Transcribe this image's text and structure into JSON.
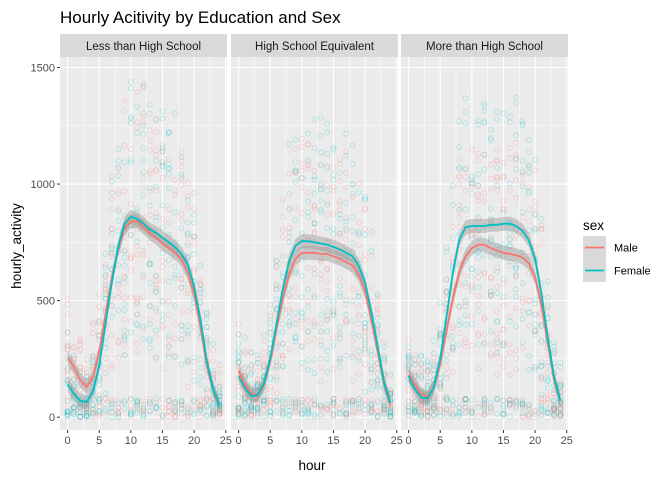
{
  "chart_data": {
    "type": "scatter",
    "title": "Hourly Acitivity by Education and Sex",
    "xlabel": "hour",
    "ylabel": "hourly_activity",
    "xlim": [
      -1.2,
      25.2
    ],
    "ylim": [
      -55,
      1545
    ],
    "x_ticks": [
      0,
      5,
      10,
      15,
      20,
      25
    ],
    "y_ticks": [
      0,
      500,
      1000,
      1500
    ],
    "x_tick_labels": [
      "0",
      "5",
      "10",
      "15",
      "20",
      "25"
    ],
    "y_tick_labels": [
      "0",
      "500",
      "1000",
      "1500"
    ],
    "panel_background": "#ebebeb",
    "strip_background": "#d9d9d9",
    "grid": true,
    "legend": {
      "title": "sex",
      "placement": "right",
      "entries": [
        {
          "label": "Male",
          "color": "#F8766D"
        },
        {
          "label": "Female",
          "color": "#00BFC4"
        }
      ]
    },
    "point_opacity": 0.12,
    "panels": [
      {
        "strip_label": "Less than High School",
        "series": [
          {
            "name": "Male",
            "color": "#F8766D",
            "x": [
              0,
              1,
              2,
              3,
              4,
              5,
              6,
              7,
              8,
              9,
              10,
              11,
              12,
              13,
              14,
              15,
              16,
              17,
              18,
              19,
              20,
              21,
              22,
              23,
              24
            ],
            "values": [
              255,
              215,
              160,
              130,
              170,
              280,
              440,
              600,
              720,
              810,
              840,
              840,
              815,
              790,
              770,
              745,
              725,
              705,
              675,
              620,
              530,
              390,
              225,
              120,
              50
            ]
          },
          {
            "name": "Female",
            "color": "#00BFC4",
            "x": [
              0,
              1,
              2,
              3,
              4,
              5,
              6,
              7,
              8,
              9,
              10,
              11,
              12,
              13,
              14,
              15,
              16,
              17,
              18,
              19,
              20,
              21,
              22,
              23,
              24
            ],
            "values": [
              140,
              100,
              70,
              65,
              110,
              220,
              400,
              580,
              730,
              830,
              860,
              850,
              830,
              805,
              790,
              770,
              750,
              730,
              700,
              655,
              560,
              420,
              240,
              120,
              50
            ]
          }
        ]
      },
      {
        "strip_label": "High School Equivalent",
        "series": [
          {
            "name": "Male",
            "color": "#F8766D",
            "x": [
              0,
              1,
              2,
              3,
              4,
              5,
              6,
              7,
              8,
              9,
              10,
              11,
              12,
              13,
              14,
              15,
              16,
              17,
              18,
              19,
              20,
              21,
              22,
              23,
              24
            ],
            "values": [
              200,
              140,
              100,
              95,
              140,
              240,
              380,
              510,
              615,
              680,
              705,
              705,
              705,
              700,
              700,
              690,
              680,
              665,
              650,
              610,
              540,
              420,
              280,
              140,
              60
            ]
          },
          {
            "name": "Female",
            "color": "#00BFC4",
            "x": [
              0,
              1,
              2,
              3,
              4,
              5,
              6,
              7,
              8,
              9,
              10,
              11,
              12,
              13,
              14,
              15,
              16,
              17,
              18,
              19,
              20,
              21,
              22,
              23,
              24
            ],
            "values": [
              175,
              125,
              90,
              95,
              145,
              250,
              400,
              550,
              670,
              735,
              755,
              755,
              750,
              745,
              740,
              730,
              720,
              705,
              690,
              650,
              575,
              450,
              300,
              150,
              60
            ]
          }
        ]
      },
      {
        "strip_label": "More than High School",
        "series": [
          {
            "name": "Male",
            "color": "#F8766D",
            "x": [
              0,
              1,
              2,
              3,
              4,
              5,
              6,
              7,
              8,
              9,
              10,
              11,
              12,
              13,
              14,
              15,
              16,
              17,
              18,
              19,
              20,
              21,
              22,
              23,
              24
            ],
            "values": [
              180,
              140,
              100,
              85,
              130,
              230,
              370,
              510,
              620,
              690,
              725,
              740,
              740,
              725,
              715,
              705,
              700,
              695,
              685,
              660,
              600,
              480,
              320,
              160,
              70
            ]
          },
          {
            "name": "Female",
            "color": "#00BFC4",
            "x": [
              0,
              1,
              2,
              3,
              4,
              5,
              6,
              7,
              8,
              9,
              10,
              11,
              12,
              13,
              14,
              15,
              16,
              17,
              18,
              19,
              20,
              21,
              22,
              23,
              24
            ],
            "values": [
              175,
              120,
              85,
              80,
              130,
              250,
              430,
              620,
              760,
              815,
              820,
              820,
              820,
              825,
              825,
              830,
              830,
              820,
              800,
              760,
              680,
              530,
              340,
              170,
              70
            ]
          }
        ]
      }
    ]
  }
}
